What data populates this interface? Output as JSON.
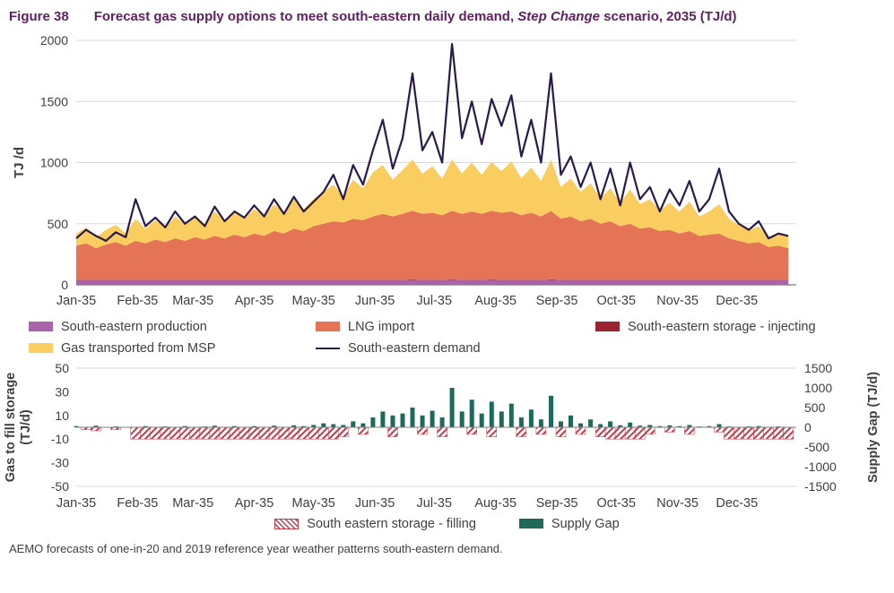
{
  "title": {
    "figure_label": "Figure 38",
    "text": "Forecast gas supply options to meet south-eastern daily demand, ",
    "italic": "Step Change",
    "suffix": " scenario, 2035 (TJ/d)"
  },
  "footer": "AEMO forecasts of one-in-20 and 2019 reference year weather patterns south-eastern demand.",
  "colors": {
    "title": "#5f2161",
    "text": "#3f3f3f",
    "grid": "#d9d9d9",
    "axis_top_zero": "#595959",
    "axis_bottom_zero": "#7f7f7f"
  },
  "chart_data": [
    {
      "type": "area",
      "title": "Forecast gas supply options to meet south-eastern daily demand, Step Change scenario, 2035 (TJ/d)",
      "ylabel": "TJ /d",
      "ylim": [
        0,
        2000
      ],
      "yticks": [
        0,
        500,
        1000,
        1500,
        2000
      ],
      "xtick_labels": [
        "Jan-35",
        "Feb-35",
        "Mar-35",
        "Apr-35",
        "May-35",
        "Jun-35",
        "Jul-35",
        "Aug-35",
        "Sep-35",
        "Oct-35",
        "Nov-35",
        "Dec-35"
      ],
      "month_start_days": [
        0,
        31,
        59,
        90,
        120,
        151,
        181,
        212,
        243,
        273,
        304,
        334
      ],
      "x_unit": "day of year 2035 (5-day sampling)",
      "x": [
        0,
        5,
        10,
        15,
        20,
        25,
        30,
        35,
        40,
        45,
        50,
        55,
        60,
        65,
        70,
        75,
        80,
        85,
        90,
        95,
        100,
        105,
        110,
        115,
        120,
        125,
        130,
        135,
        140,
        145,
        150,
        155,
        160,
        165,
        170,
        175,
        180,
        185,
        190,
        195,
        200,
        205,
        210,
        215,
        220,
        225,
        230,
        235,
        240,
        245,
        250,
        255,
        260,
        265,
        270,
        275,
        280,
        285,
        290,
        295,
        300,
        305,
        310,
        315,
        320,
        325,
        330,
        335,
        340,
        345,
        350,
        355,
        360
      ],
      "series": [
        {
          "name": "South-eastern production",
          "type": "area",
          "color": "#aa63aa",
          "values": [
            40,
            40,
            40,
            40,
            40,
            40,
            40,
            40,
            40,
            40,
            40,
            40,
            40,
            40,
            40,
            40,
            40,
            40,
            40,
            40,
            40,
            40,
            40,
            40,
            40,
            40,
            40,
            40,
            40,
            40,
            40,
            40,
            40,
            40,
            40,
            40,
            40,
            40,
            40,
            40,
            40,
            40,
            40,
            40,
            40,
            40,
            40,
            40,
            40,
            40,
            40,
            40,
            40,
            40,
            40,
            40,
            40,
            40,
            40,
            40,
            40,
            40,
            40,
            40,
            40,
            40,
            40,
            40,
            40,
            40,
            40,
            40,
            40
          ]
        },
        {
          "name": "South-eastern storage - injecting",
          "type": "area",
          "color": "#9a2333",
          "values": [
            0,
            0,
            0,
            0,
            0,
            0,
            0,
            0,
            0,
            0,
            0,
            0,
            0,
            0,
            0,
            0,
            0,
            0,
            0,
            0,
            0,
            0,
            0,
            0,
            0,
            0,
            0,
            0,
            0,
            0,
            0,
            0,
            0,
            0,
            5,
            0,
            0,
            0,
            5,
            0,
            0,
            0,
            5,
            0,
            0,
            0,
            0,
            0,
            5,
            0,
            0,
            0,
            0,
            0,
            0,
            0,
            0,
            0,
            0,
            0,
            0,
            0,
            0,
            0,
            0,
            0,
            0,
            0,
            0,
            0,
            0,
            0,
            0
          ]
        },
        {
          "name": "LNG import",
          "type": "area",
          "color": "#e57355",
          "values": [
            280,
            300,
            260,
            290,
            310,
            280,
            320,
            300,
            330,
            310,
            340,
            320,
            350,
            330,
            360,
            340,
            370,
            350,
            380,
            360,
            400,
            380,
            420,
            400,
            440,
            460,
            480,
            470,
            500,
            490,
            520,
            540,
            520,
            540,
            560,
            540,
            550,
            530,
            560,
            540,
            560,
            540,
            560,
            550,
            560,
            530,
            550,
            520,
            560,
            500,
            520,
            480,
            500,
            460,
            480,
            440,
            460,
            420,
            430,
            400,
            410,
            380,
            400,
            360,
            370,
            380,
            340,
            320,
            300,
            310,
            270,
            280,
            260
          ]
        },
        {
          "name": "Gas transported from MSP",
          "type": "area",
          "color": "#f9cd60",
          "values": [
            100,
            130,
            90,
            120,
            140,
            100,
            180,
            120,
            160,
            120,
            180,
            140,
            170,
            130,
            200,
            150,
            190,
            150,
            200,
            160,
            220,
            170,
            240,
            180,
            220,
            260,
            300,
            220,
            320,
            260,
            360,
            400,
            300,
            360,
            420,
            330,
            380,
            300,
            420,
            330,
            400,
            320,
            400,
            340,
            410,
            300,
            370,
            290,
            420,
            260,
            310,
            240,
            290,
            210,
            270,
            190,
            280,
            200,
            230,
            170,
            220,
            180,
            240,
            160,
            190,
            240,
            160,
            130,
            110,
            130,
            80,
            100,
            90
          ]
        },
        {
          "name": "South-eastern demand",
          "type": "line",
          "color": "#2a1a4a",
          "values": [
            380,
            450,
            400,
            360,
            430,
            390,
            700,
            480,
            550,
            470,
            600,
            500,
            560,
            480,
            640,
            520,
            600,
            550,
            650,
            560,
            700,
            580,
            720,
            600,
            680,
            760,
            900,
            700,
            980,
            820,
            1100,
            1350,
            950,
            1200,
            1730,
            1100,
            1250,
            1000,
            1970,
            1200,
            1500,
            1150,
            1520,
            1300,
            1550,
            1050,
            1350,
            1000,
            1730,
            900,
            1050,
            800,
            1000,
            700,
            950,
            650,
            1000,
            700,
            800,
            600,
            780,
            650,
            850,
            600,
            700,
            950,
            600,
            500,
            450,
            520,
            380,
            420,
            400
          ]
        }
      ]
    },
    {
      "type": "bar",
      "left_axis": {
        "label_lines": [
          "Gas to fill storage",
          "(TJ/d)"
        ],
        "lim": [
          -50,
          50
        ],
        "ticks": [
          50,
          30,
          10,
          -10,
          -30,
          -50
        ]
      },
      "right_axis": {
        "label": "Supply Gap (TJ/d)",
        "lim": [
          -1500,
          1500
        ],
        "ticks": [
          1500,
          1000,
          500,
          0,
          -500,
          -1000,
          -1500
        ]
      },
      "xtick_labels": [
        "Jan-35",
        "Feb-35",
        "Mar-35",
        "Apr-35",
        "May-35",
        "Jun-35",
        "Jul-35",
        "Aug-35",
        "Sep-35",
        "Oct-35",
        "Nov-35",
        "Dec-35"
      ],
      "month_start_days": [
        0,
        31,
        59,
        90,
        120,
        151,
        181,
        212,
        243,
        273,
        304,
        334
      ],
      "x": [
        0,
        5,
        10,
        15,
        20,
        25,
        30,
        35,
        40,
        45,
        50,
        55,
        60,
        65,
        70,
        75,
        80,
        85,
        90,
        95,
        100,
        105,
        110,
        115,
        120,
        125,
        130,
        135,
        140,
        145,
        150,
        155,
        160,
        165,
        170,
        175,
        180,
        185,
        190,
        195,
        200,
        205,
        210,
        215,
        220,
        225,
        230,
        235,
        240,
        245,
        250,
        255,
        260,
        265,
        270,
        275,
        280,
        285,
        290,
        295,
        300,
        305,
        310,
        315,
        320,
        325,
        330,
        335,
        340,
        345,
        350,
        355,
        360
      ],
      "series": [
        {
          "name": "South eastern storage - filling",
          "axis": "left",
          "style": "hatched",
          "color": "#c23b4b",
          "values": [
            0,
            -2,
            -3,
            0,
            -2,
            0,
            -10,
            -10,
            -10,
            -10,
            -10,
            -10,
            -10,
            -10,
            -10,
            -10,
            -10,
            -10,
            -10,
            -10,
            -10,
            -10,
            -10,
            -10,
            -10,
            -10,
            -10,
            -8,
            0,
            -6,
            0,
            0,
            -8,
            0,
            0,
            -6,
            0,
            -8,
            0,
            0,
            -6,
            0,
            -8,
            0,
            0,
            -8,
            0,
            -6,
            0,
            -8,
            0,
            -6,
            0,
            -8,
            -10,
            -10,
            -10,
            -10,
            -6,
            0,
            -4,
            0,
            -6,
            0,
            0,
            -4,
            -10,
            -10,
            -10,
            -10,
            -10,
            -10,
            -10
          ]
        },
        {
          "name": "Supply Gap",
          "axis": "right",
          "style": "solid",
          "color": "#1d6a5b",
          "values": [
            30,
            0,
            40,
            0,
            20,
            0,
            0,
            30,
            0,
            20,
            0,
            30,
            0,
            20,
            40,
            0,
            30,
            0,
            30,
            0,
            40,
            0,
            50,
            30,
            60,
            100,
            80,
            60,
            150,
            100,
            250,
            400,
            300,
            350,
            500,
            300,
            420,
            250,
            1000,
            400,
            700,
            350,
            650,
            400,
            600,
            250,
            450,
            200,
            800,
            150,
            300,
            100,
            200,
            80,
            150,
            50,
            120,
            40,
            60,
            30,
            50,
            30,
            60,
            20,
            30,
            80,
            20,
            10,
            20,
            30,
            10,
            20,
            10
          ]
        }
      ]
    }
  ]
}
